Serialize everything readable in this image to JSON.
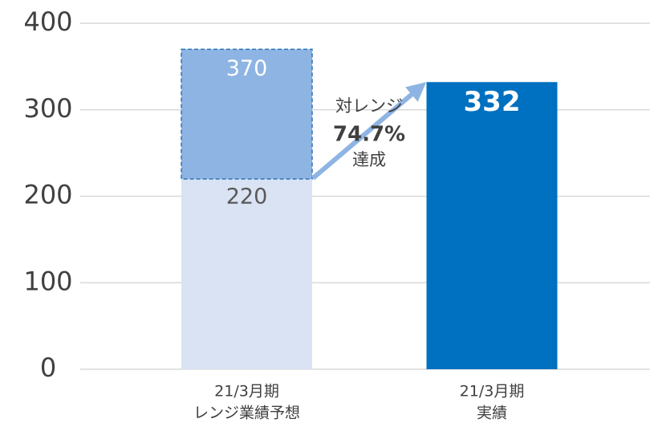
{
  "chart_data": {
    "type": "bar",
    "categories": [
      [
        "21/3月期",
        "レンジ業績予想"
      ],
      [
        "21/3月期",
        "実績"
      ]
    ],
    "values": [
      220,
      332
    ],
    "colors": [
      "#dae3f3",
      "#0070c0"
    ],
    "range_high": [
      370,
      null
    ],
    "range_color": "#8eb4e3",
    "ylim": [
      0,
      400
    ],
    "yticks": [
      0,
      100,
      200,
      300,
      400
    ],
    "grid": true,
    "annotation": [
      "対レンジ",
      "74.7%",
      "達成"
    ]
  }
}
